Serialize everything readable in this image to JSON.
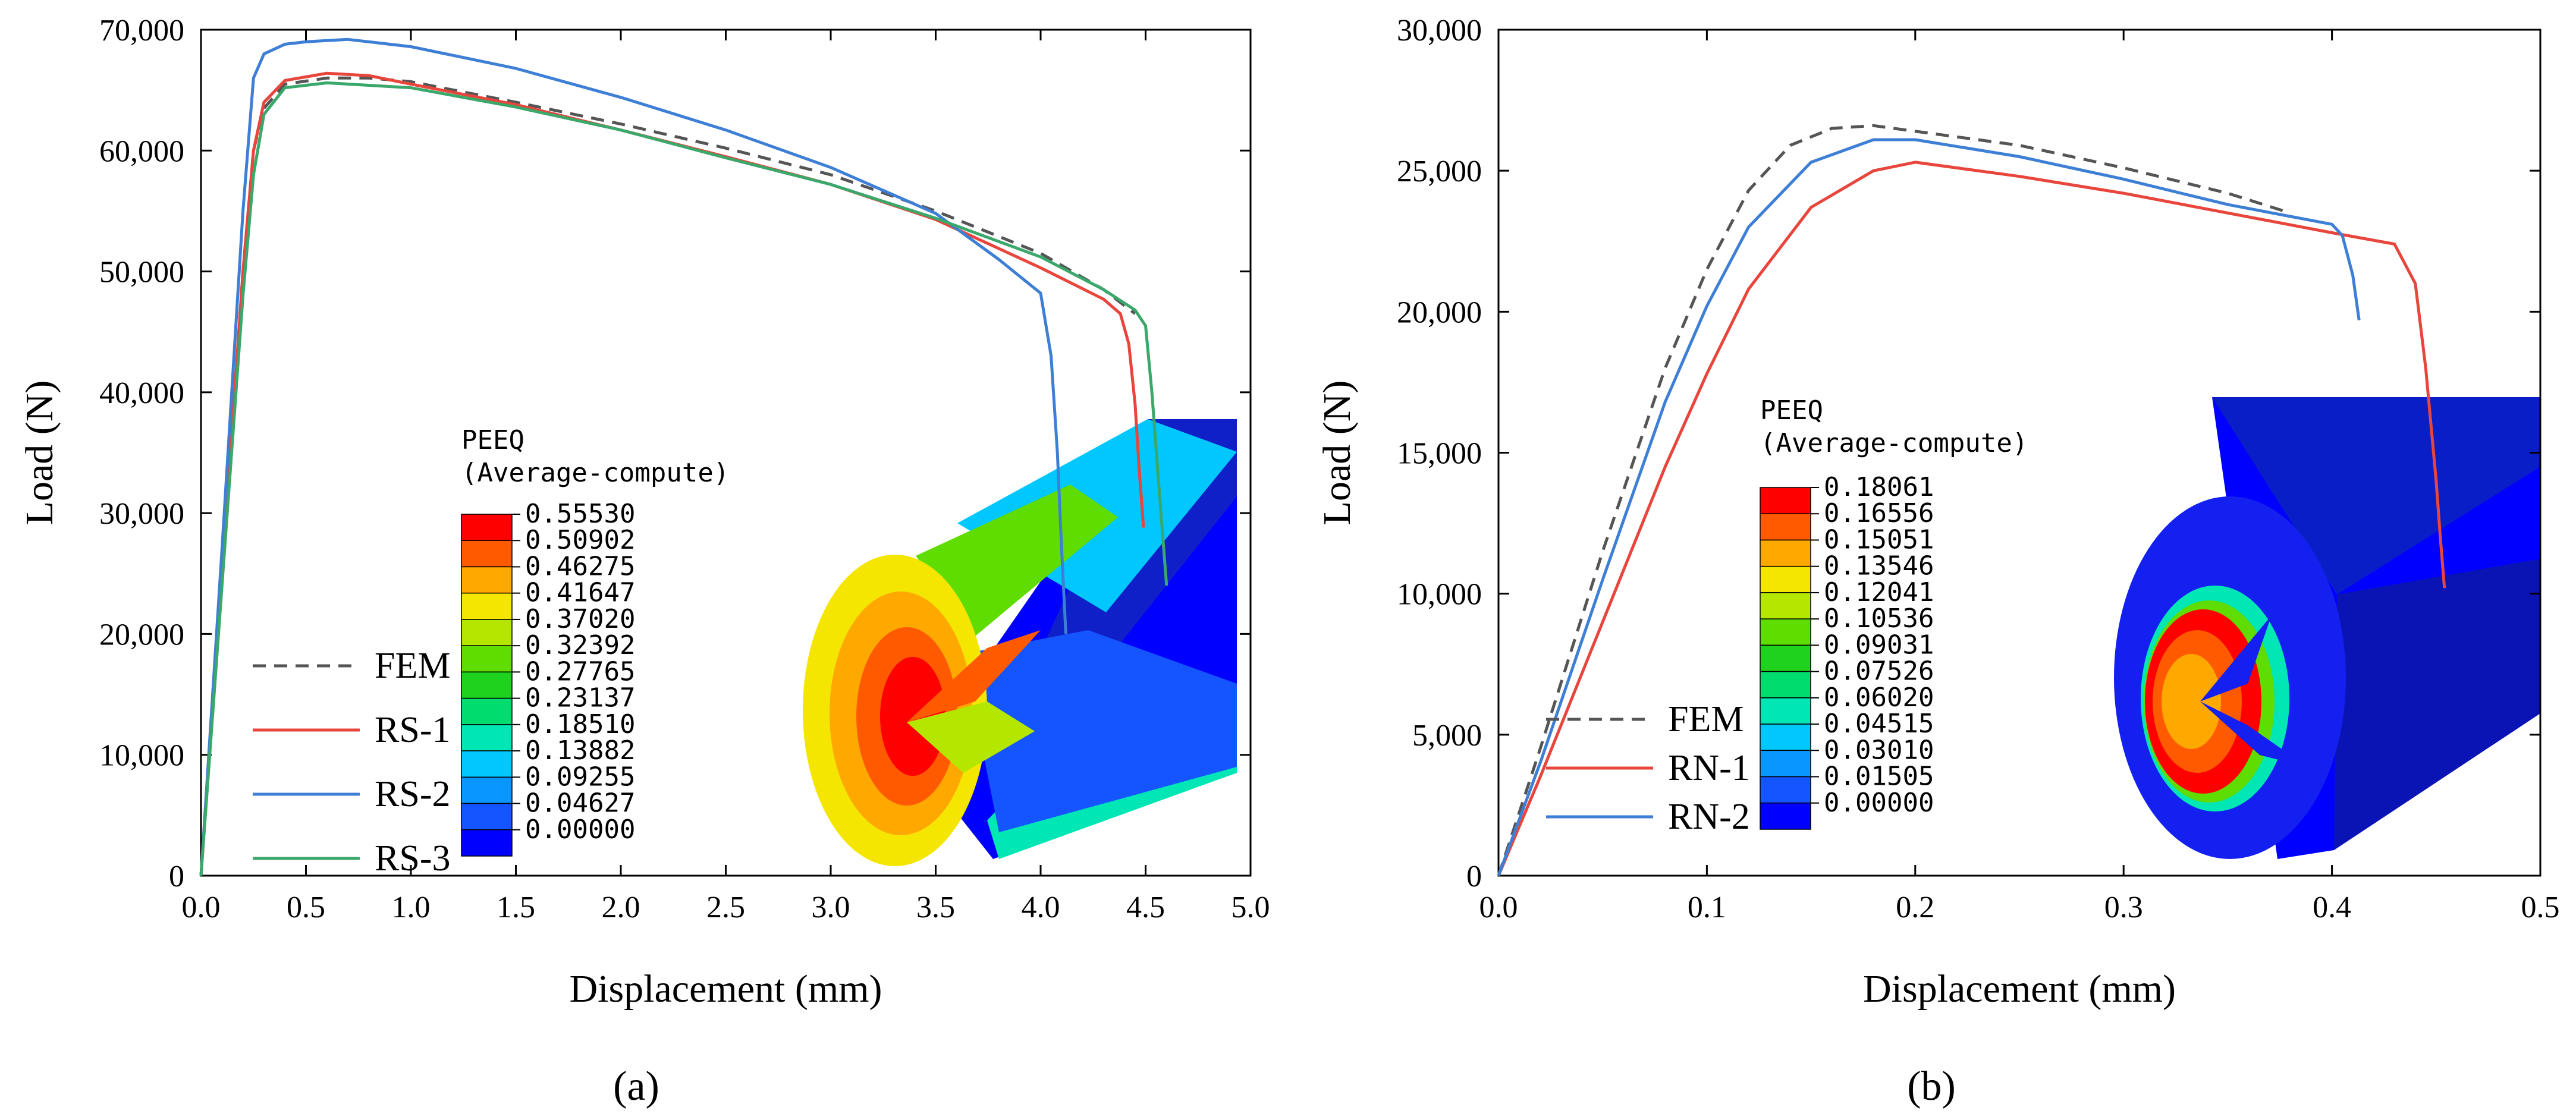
{
  "chart_data": [
    {
      "type": "line",
      "panel_label": "(a)",
      "xlabel": "Displacement (mm)",
      "ylabel": "Load (N)",
      "xlim": [
        0,
        5
      ],
      "ylim": [
        0,
        70000
      ],
      "xticks": [
        0,
        0.5,
        1,
        1.5,
        2,
        2.5,
        3,
        3.5,
        4,
        4.5,
        5
      ],
      "xtick_labels": [
        "0.0",
        "0.5",
        "1.0",
        "1.5",
        "2.0",
        "2.5",
        "3.0",
        "3.5",
        "4.0",
        "4.5",
        "5.0"
      ],
      "yticks": [
        0,
        10000,
        20000,
        30000,
        40000,
        50000,
        60000,
        70000
      ],
      "ytick_labels": [
        "0",
        "10,000",
        "20,000",
        "30,000",
        "40,000",
        "50,000",
        "60,000",
        "70,000"
      ],
      "grid": false,
      "legend_position": "bottom-left",
      "series": [
        {
          "name": "FEM",
          "color": "#555555",
          "dash": true,
          "x": [
            0,
            0.1,
            0.2,
            0.25,
            0.3,
            0.4,
            0.6,
            0.8,
            1.0,
            1.5,
            2.0,
            2.5,
            3.0,
            3.5,
            4.0,
            4.3,
            4.45
          ],
          "y": [
            0,
            25000,
            50000,
            60000,
            63500,
            65500,
            66000,
            66000,
            65700,
            64000,
            62200,
            60200,
            58000,
            55000,
            51500,
            48500,
            46500
          ]
        },
        {
          "name": "RS-1",
          "color": "#e8453c",
          "dash": false,
          "x": [
            0,
            0.1,
            0.2,
            0.25,
            0.3,
            0.4,
            0.6,
            0.8,
            1.0,
            1.5,
            2.0,
            2.5,
            3.0,
            3.5,
            4.0,
            4.3,
            4.38,
            4.42,
            4.45,
            4.47,
            4.49
          ],
          "y": [
            0,
            25000,
            50000,
            60000,
            64000,
            65800,
            66400,
            66200,
            65500,
            63800,
            61700,
            59500,
            57200,
            54300,
            50300,
            47700,
            46500,
            44000,
            39000,
            33500,
            28800
          ]
        },
        {
          "name": "RS-2",
          "color": "#3e7fd6",
          "dash": false,
          "x": [
            0,
            0.1,
            0.2,
            0.25,
            0.3,
            0.4,
            0.5,
            0.7,
            1.0,
            1.5,
            2.0,
            2.5,
            3.0,
            3.5,
            3.8,
            4.0,
            4.05,
            4.08,
            4.1,
            4.12
          ],
          "y": [
            0,
            27000,
            55000,
            66000,
            68000,
            68800,
            69000,
            69200,
            68600,
            66800,
            64400,
            61700,
            58600,
            54800,
            51000,
            48200,
            43000,
            35000,
            27000,
            20000
          ]
        },
        {
          "name": "RS-3",
          "color": "#3aa86b",
          "dash": false,
          "x": [
            0,
            0.1,
            0.2,
            0.25,
            0.3,
            0.4,
            0.6,
            0.8,
            1.0,
            1.5,
            2.0,
            2.5,
            3.0,
            3.5,
            4.0,
            4.3,
            4.45,
            4.5,
            4.53,
            4.56,
            4.6
          ],
          "y": [
            0,
            24000,
            48000,
            58000,
            63000,
            65200,
            65600,
            65400,
            65200,
            63600,
            61700,
            59400,
            57200,
            54400,
            51200,
            48500,
            46800,
            45500,
            40000,
            33000,
            24000
          ]
        }
      ],
      "colorbar": {
        "title": "PEEQ",
        "subtitle": "(Average-compute)",
        "labels": [
          "0.55530",
          "0.50902",
          "0.46275",
          "0.41647",
          "0.37020",
          "0.32392",
          "0.27765",
          "0.23137",
          "0.18510",
          "0.13882",
          "0.09255",
          "0.04627",
          "0.00000"
        ],
        "colors": [
          "#ff0000",
          "#ff5a00",
          "#ffa800",
          "#f4e600",
          "#b4e600",
          "#5fdc00",
          "#1ed21e",
          "#00dc6e",
          "#00e6b4",
          "#00c8ff",
          "#0a96ff",
          "#1455ff",
          "#0000ff"
        ]
      }
    },
    {
      "type": "line",
      "panel_label": "(b)",
      "xlabel": "Displacement (mm)",
      "ylabel": "Load (N)",
      "xlim": [
        0,
        0.5
      ],
      "ylim": [
        0,
        30000
      ],
      "xticks": [
        0,
        0.1,
        0.2,
        0.3,
        0.4,
        0.5
      ],
      "xtick_labels": [
        "0.0",
        "0.1",
        "0.2",
        "0.3",
        "0.4",
        "0.5"
      ],
      "yticks": [
        0,
        5000,
        10000,
        15000,
        20000,
        25000,
        30000
      ],
      "ytick_labels": [
        "0",
        "5,000",
        "10,000",
        "15,000",
        "20,000",
        "25,000",
        "30,000"
      ],
      "grid": false,
      "legend_position": "bottom-left",
      "series": [
        {
          "name": "FEM",
          "color": "#555555",
          "dash": true,
          "x": [
            0,
            0.02,
            0.05,
            0.08,
            0.1,
            0.12,
            0.14,
            0.16,
            0.18,
            0.2,
            0.25,
            0.3,
            0.35,
            0.38
          ],
          "y": [
            0,
            4500,
            11500,
            18000,
            21500,
            24300,
            25900,
            26500,
            26600,
            26400,
            25900,
            25100,
            24200,
            23500
          ]
        },
        {
          "name": "RN-1",
          "color": "#e8453c",
          "dash": false,
          "x": [
            0,
            0.02,
            0.05,
            0.08,
            0.1,
            0.12,
            0.15,
            0.18,
            0.2,
            0.25,
            0.3,
            0.35,
            0.4,
            0.43,
            0.44,
            0.445,
            0.45,
            0.452,
            0.454
          ],
          "y": [
            0,
            3500,
            9000,
            14500,
            17800,
            20800,
            23700,
            25000,
            25300,
            24800,
            24200,
            23500,
            22800,
            22400,
            21000,
            18000,
            14000,
            12000,
            10200
          ]
        },
        {
          "name": "RN-2",
          "color": "#3e7fd6",
          "dash": false,
          "x": [
            0,
            0.02,
            0.05,
            0.08,
            0.1,
            0.12,
            0.15,
            0.18,
            0.2,
            0.25,
            0.3,
            0.35,
            0.4,
            0.405,
            0.41,
            0.413
          ],
          "y": [
            0,
            4000,
            10500,
            16800,
            20200,
            23000,
            25300,
            26100,
            26100,
            25500,
            24700,
            23800,
            23100,
            22700,
            21300,
            19700
          ]
        }
      ],
      "colorbar": {
        "title": "PEEQ",
        "subtitle": "(Average-compute)",
        "labels": [
          "0.18061",
          "0.16556",
          "0.15051",
          "0.13546",
          "0.12041",
          "0.10536",
          "0.09031",
          "0.07526",
          "0.06020",
          "0.04515",
          "0.03010",
          "0.01505",
          "0.00000"
        ],
        "colors": [
          "#ff0000",
          "#ff5a00",
          "#ffa800",
          "#f4e600",
          "#b4e600",
          "#5fdc00",
          "#1ed21e",
          "#00dc6e",
          "#00e6b4",
          "#00c8ff",
          "#0a96ff",
          "#1455ff",
          "#0000ff"
        ]
      }
    }
  ]
}
